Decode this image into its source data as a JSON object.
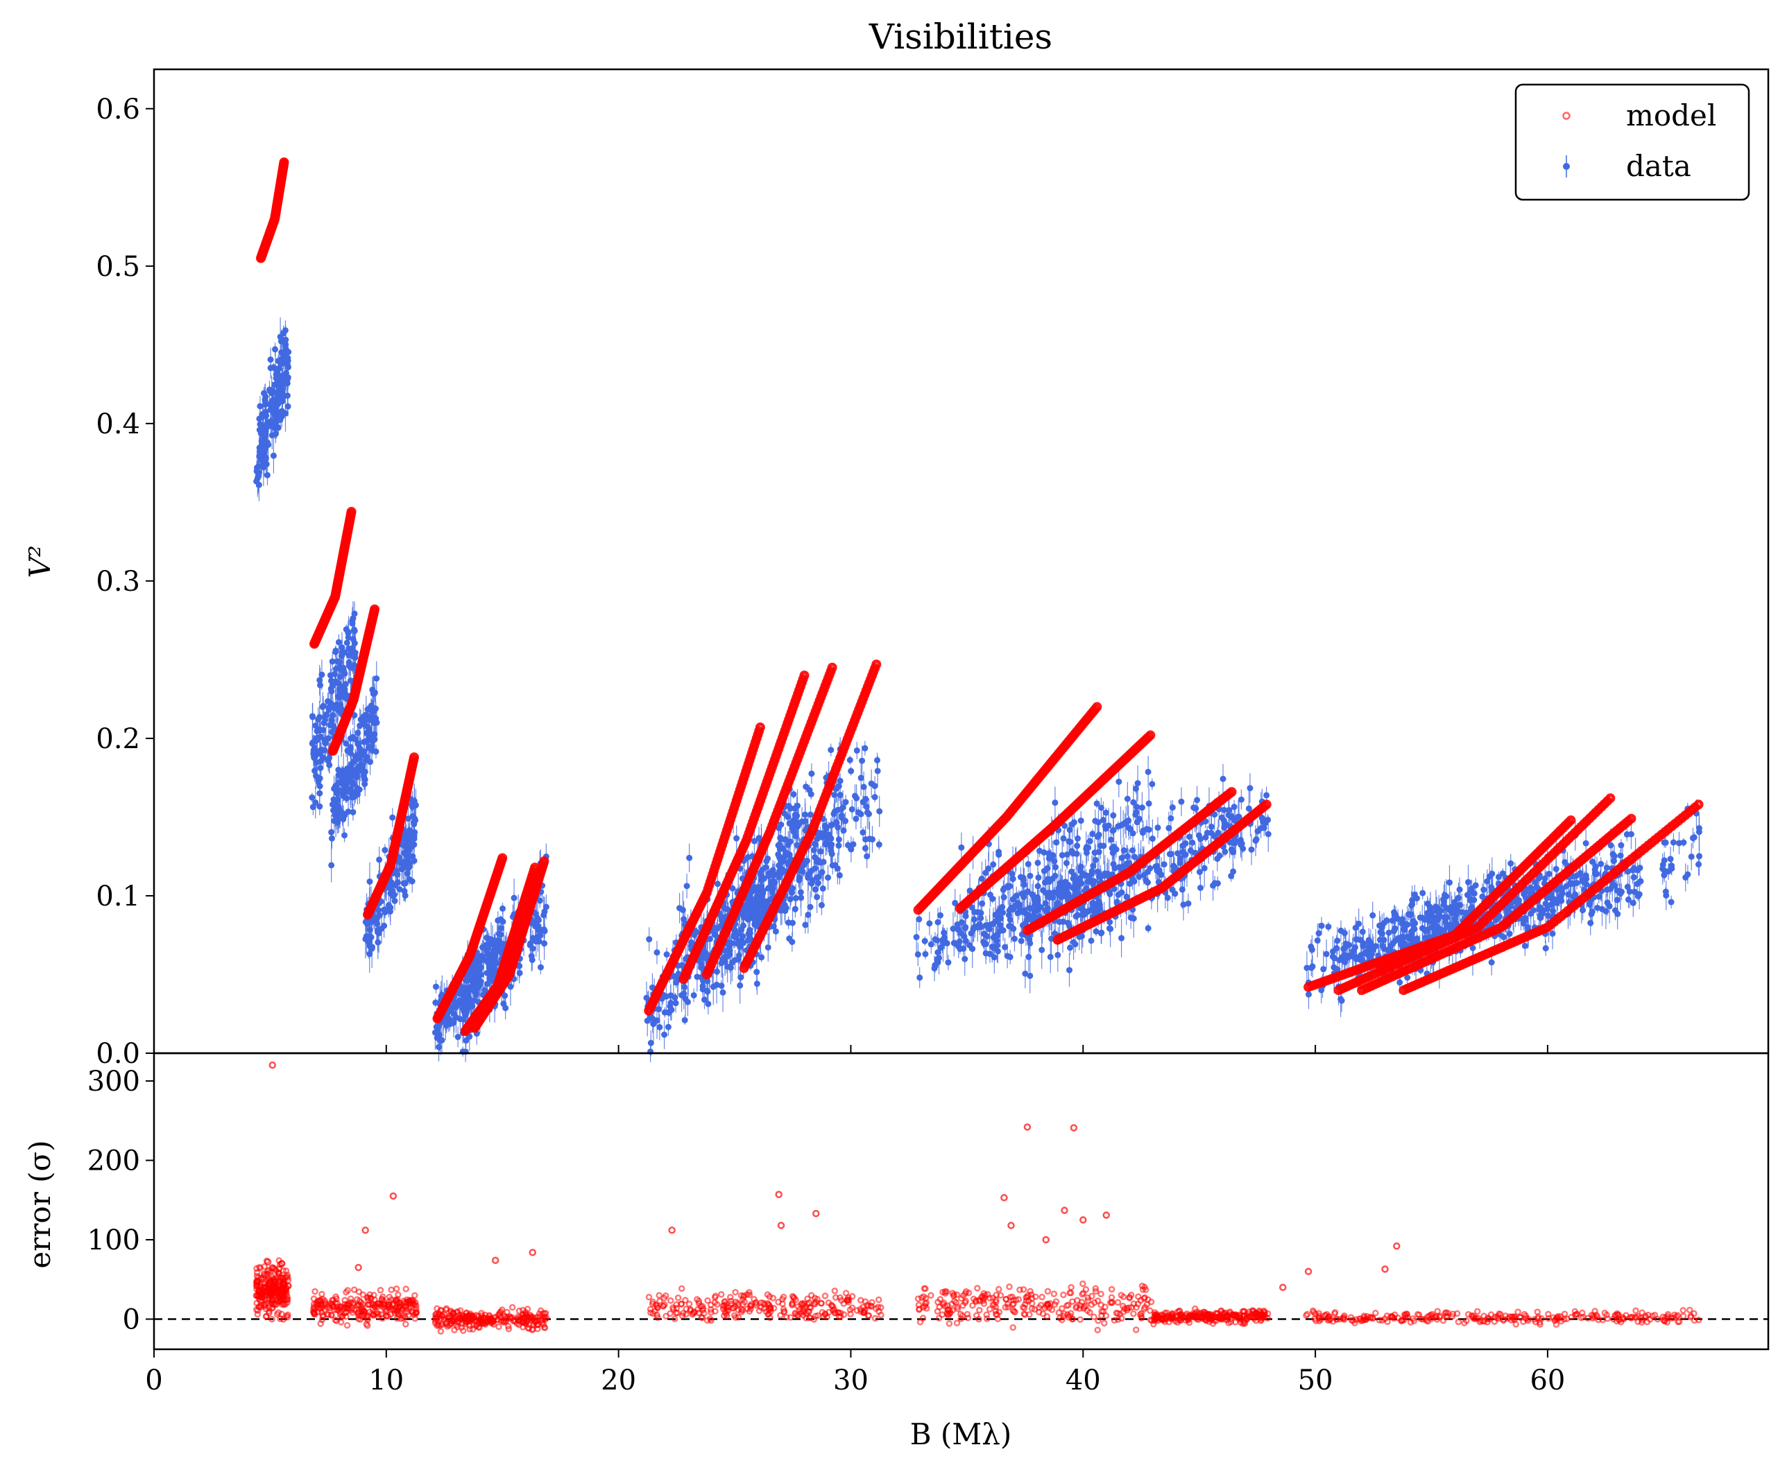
{
  "chart_data": [
    {
      "type": "scatter",
      "title": "Visibilities",
      "xlabel": "",
      "ylabel": "V²",
      "xlim": [
        0,
        69.5
      ],
      "ylim": [
        0,
        0.625
      ],
      "x_ticks": [
        0,
        10,
        20,
        30,
        40,
        50,
        60
      ],
      "y_ticks": [
        0.0,
        0.1,
        0.2,
        0.3,
        0.4,
        0.5,
        0.6
      ],
      "y_tick_labels": [
        "0.0",
        "0.1",
        "0.2",
        "0.3",
        "0.4",
        "0.5",
        "0.6"
      ],
      "legend": {
        "placement": "top-right",
        "entries": [
          {
            "label": "model",
            "color": "#ff0000",
            "marker": "open-circle"
          },
          {
            "label": "data",
            "color": "#4169e1",
            "marker": "point-errorbar"
          }
        ]
      },
      "series": [
        {
          "name": "model",
          "color": "#ff0000",
          "tracks": [
            {
              "x": [
                4.6,
                5.2,
                5.6
              ],
              "y": [
                0.505,
                0.53,
                0.566
              ]
            },
            {
              "x": [
                6.9,
                7.8,
                8.5
              ],
              "y": [
                0.26,
                0.29,
                0.344
              ]
            },
            {
              "x": [
                7.7,
                8.6,
                9.5
              ],
              "y": [
                0.192,
                0.225,
                0.282
              ]
            },
            {
              "x": [
                9.2,
                10.2,
                11.2
              ],
              "y": [
                0.088,
                0.12,
                0.188
              ]
            },
            {
              "x": [
                12.2,
                13.6,
                15.0
              ],
              "y": [
                0.022,
                0.062,
                0.124
              ]
            },
            {
              "x": [
                13.4,
                14.8,
                16.4
              ],
              "y": [
                0.014,
                0.043,
                0.118
              ]
            },
            {
              "x": [
                13.8,
                15.3,
                16.8
              ],
              "y": [
                0.016,
                0.05,
                0.122
              ]
            },
            {
              "x": [
                21.3,
                23.8,
                26.1
              ],
              "y": [
                0.027,
                0.102,
                0.207
              ]
            },
            {
              "x": [
                22.8,
                25.5,
                28.0
              ],
              "y": [
                0.047,
                0.135,
                0.24
              ]
            },
            {
              "x": [
                23.8,
                26.5,
                29.2
              ],
              "y": [
                0.05,
                0.14,
                0.245
              ]
            },
            {
              "x": [
                25.4,
                28.3,
                31.1
              ],
              "y": [
                0.054,
                0.14,
                0.247
              ]
            },
            {
              "x": [
                32.9,
                36.7,
                40.6
              ],
              "y": [
                0.091,
                0.15,
                0.22
              ]
            },
            {
              "x": [
                34.7,
                38.8,
                42.9
              ],
              "y": [
                0.092,
                0.145,
                0.202
              ]
            },
            {
              "x": [
                37.6,
                42.0,
                46.4
              ],
              "y": [
                0.078,
                0.115,
                0.166
              ]
            },
            {
              "x": [
                38.9,
                43.4,
                47.9
              ],
              "y": [
                0.072,
                0.105,
                0.158
              ]
            },
            {
              "x": [
                49.7,
                56.0,
                61.0
              ],
              "y": [
                0.042,
                0.075,
                0.148
              ]
            },
            {
              "x": [
                51.0,
                57.0,
                62.7
              ],
              "y": [
                0.04,
                0.08,
                0.162
              ]
            },
            {
              "x": [
                52.0,
                58.0,
                63.6
              ],
              "y": [
                0.04,
                0.08,
                0.149
              ]
            },
            {
              "x": [
                53.8,
                60.0,
                66.5
              ],
              "y": [
                0.04,
                0.08,
                0.158
              ]
            }
          ]
        },
        {
          "name": "data",
          "color": "#4169e1",
          "clusters": [
            {
              "x_range": [
                4.4,
                5.8
              ],
              "y_center": 0.41,
              "y_spread": 0.03
            },
            {
              "x_range": [
                6.8,
                8.7
              ],
              "y_center": 0.22,
              "y_spread": 0.035
            },
            {
              "x_range": [
                7.6,
                9.6
              ],
              "y_center": 0.18,
              "y_spread": 0.03
            },
            {
              "x_range": [
                9.1,
                11.3
              ],
              "y_center": 0.11,
              "y_spread": 0.03
            },
            {
              "x_range": [
                12.1,
                15.1
              ],
              "y_center": 0.045,
              "y_spread": 0.025
            },
            {
              "x_range": [
                13.2,
                16.9
              ],
              "y_center": 0.06,
              "y_spread": 0.03
            },
            {
              "x_range": [
                21.2,
                26.4
              ],
              "y_center": 0.06,
              "y_spread": 0.03
            },
            {
              "x_range": [
                22.6,
                28.4
              ],
              "y_center": 0.1,
              "y_spread": 0.04
            },
            {
              "x_range": [
                23.6,
                29.6
              ],
              "y_center": 0.11,
              "y_spread": 0.04
            },
            {
              "x_range": [
                25.2,
                31.3
              ],
              "y_center": 0.12,
              "y_spread": 0.04
            },
            {
              "x_range": [
                32.8,
                40.8
              ],
              "y_center": 0.085,
              "y_spread": 0.02
            },
            {
              "x_range": [
                34.5,
                43.0
              ],
              "y_center": 0.12,
              "y_spread": 0.035
            },
            {
              "x_range": [
                37.5,
                46.6
              ],
              "y_center": 0.11,
              "y_spread": 0.03
            },
            {
              "x_range": [
                38.7,
                48.0
              ],
              "y_center": 0.12,
              "y_spread": 0.03
            },
            {
              "x_range": [
                49.6,
                61.2
              ],
              "y_center": 0.08,
              "y_spread": 0.025
            },
            {
              "x_range": [
                50.8,
                62.9
              ],
              "y_center": 0.085,
              "y_spread": 0.025
            },
            {
              "x_range": [
                51.8,
                63.8
              ],
              "y_center": 0.09,
              "y_spread": 0.025
            },
            {
              "x_range": [
                53.6,
                66.7
              ],
              "y_center": 0.1,
              "y_spread": 0.025
            }
          ]
        }
      ]
    },
    {
      "type": "scatter",
      "title": "",
      "xlabel": "B (Mλ)",
      "ylabel": "error (σ)",
      "xlim": [
        0,
        69.5
      ],
      "ylim": [
        -38,
        335
      ],
      "x_ticks": [
        0,
        10,
        20,
        30,
        40,
        50,
        60
      ],
      "x_tick_labels": [
        "0",
        "10",
        "20",
        "30",
        "40",
        "50",
        "60"
      ],
      "y_ticks": [
        0,
        100,
        200,
        300
      ],
      "y_tick_labels": [
        "0",
        "100",
        "200",
        "300"
      ],
      "reference_line": {
        "y": 0,
        "style": "dashed",
        "color": "#000000"
      },
      "series": [
        {
          "name": "model",
          "color": "#ff0000",
          "points": [
            [
              5.1,
              320
            ],
            [
              9.1,
              112
            ],
            [
              10.3,
              155
            ],
            [
              26.9,
              157
            ],
            [
              27.0,
              118
            ],
            [
              28.5,
              133
            ],
            [
              36.6,
              153
            ],
            [
              37.6,
              242
            ],
            [
              39.2,
              137
            ],
            [
              39.6,
              241
            ],
            [
              41.0,
              131
            ],
            [
              40.0,
              125
            ],
            [
              22.3,
              112
            ],
            [
              36.9,
              118
            ],
            [
              38.4,
              100
            ],
            [
              53.5,
              92
            ],
            [
              53.0,
              63
            ],
            [
              48.6,
              40
            ],
            [
              49.7,
              60
            ],
            [
              14.7,
              74
            ],
            [
              16.3,
              84
            ],
            [
              4.9,
              72
            ],
            [
              5.5,
              70
            ],
            [
              8.8,
              65
            ]
          ],
          "clusters": [
            {
              "x_range": [
                4.4,
                5.8
              ],
              "y_center": 35,
              "y_spread": 25
            },
            {
              "x_range": [
                6.8,
                11.3
              ],
              "y_center": 15,
              "y_spread": 14
            },
            {
              "x_range": [
                12.1,
                16.9
              ],
              "y_center": 0,
              "y_spread": 10
            },
            {
              "x_range": [
                21.2,
                31.3
              ],
              "y_center": 15,
              "y_spread": 14
            },
            {
              "x_range": [
                32.8,
                43.0
              ],
              "y_center": 18,
              "y_spread": 18
            },
            {
              "x_range": [
                43.0,
                48.0
              ],
              "y_center": 3,
              "y_spread": 6
            },
            {
              "x_range": [
                49.6,
                66.7
              ],
              "y_center": 2,
              "y_spread": 6
            }
          ]
        }
      ]
    }
  ]
}
